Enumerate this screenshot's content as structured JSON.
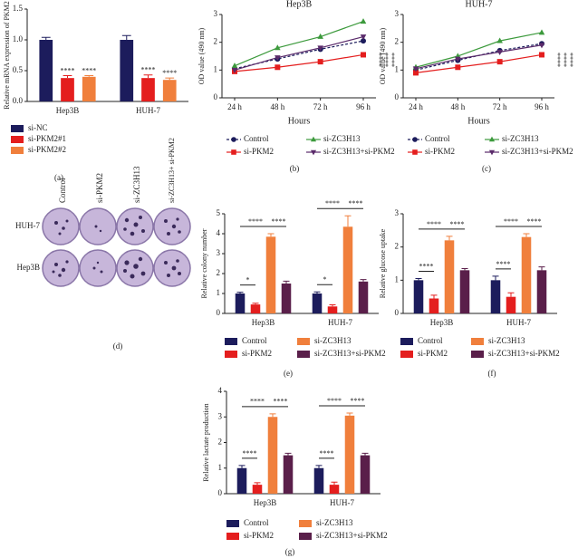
{
  "chart_data": [
    {
      "type": "bar",
      "caption": "(a)",
      "y_label": "Relative mRNA expression of PKM2",
      "categories": [
        "Hep3B",
        "HUH-7"
      ],
      "series": [
        {
          "name": "si-NC",
          "color": "#1c1c5c",
          "values": [
            1.0,
            1.0
          ],
          "errors": [
            0.04,
            0.07
          ]
        },
        {
          "name": "si-PKM2#1",
          "color": "#e41e1e",
          "values": [
            0.38,
            0.38
          ],
          "errors": [
            0.04,
            0.05
          ],
          "annotation": "****"
        },
        {
          "name": "si-PKM2#2",
          "color": "#f07f3c",
          "values": [
            0.4,
            0.35
          ],
          "errors": [
            0.02,
            0.03
          ],
          "annotation": "****"
        }
      ],
      "ylim": [
        0,
        1.5
      ],
      "yticks": [
        {
          "value": 0,
          "label": "0.0"
        },
        {
          "value": 0.5,
          "label": "0.5"
        },
        {
          "value": 1,
          "label": "1.0"
        },
        {
          "value": 1.5,
          "label": "1.5"
        }
      ]
    },
    {
      "type": "line",
      "caption": "(b)",
      "title": "Hep3B",
      "x_label": "Hours",
      "y_label": "OD value (490 nm)",
      "categories": [
        "24 h",
        "48 h",
        "72 h",
        "96 h"
      ],
      "series": [
        {
          "name": "Control",
          "color": "#1c1c5c",
          "marker": "circle",
          "dashed": true,
          "values": [
            1.05,
            1.4,
            1.75,
            2.05
          ]
        },
        {
          "name": "si-PKM2",
          "color": "#e41e1e",
          "marker": "square",
          "values": [
            0.95,
            1.1,
            1.3,
            1.55
          ]
        },
        {
          "name": "si-ZC3H13",
          "color": "#3c9a3c",
          "marker": "triangle",
          "values": [
            1.15,
            1.8,
            2.2,
            2.75
          ]
        },
        {
          "name": "si-ZC3H13+si-PKM2",
          "color": "#5a2a6a",
          "marker": "triangle-down",
          "values": [
            1.0,
            1.45,
            1.8,
            2.2
          ]
        }
      ],
      "annotations": [
        "****",
        "****",
        "****"
      ],
      "ylim": [
        0,
        3
      ],
      "yticks": [
        0,
        1,
        2,
        3
      ]
    },
    {
      "type": "line",
      "caption": "(c)",
      "title": "HUH-7",
      "x_label": "Hours",
      "y_label": "OD value (490 nm)",
      "categories": [
        "24 h",
        "48 h",
        "72 h",
        "96 h"
      ],
      "series": [
        {
          "name": "Control",
          "color": "#1c1c5c",
          "marker": "circle",
          "dashed": true,
          "values": [
            1.0,
            1.35,
            1.7,
            1.95
          ]
        },
        {
          "name": "si-PKM2",
          "color": "#e41e1e",
          "marker": "square",
          "values": [
            0.9,
            1.1,
            1.3,
            1.55
          ]
        },
        {
          "name": "si-ZC3H13",
          "color": "#3c9a3c",
          "marker": "triangle",
          "values": [
            1.1,
            1.5,
            2.05,
            2.35
          ]
        },
        {
          "name": "si-ZC3H13+si-PKM2",
          "color": "#5a2a6a",
          "marker": "triangle-down",
          "values": [
            1.05,
            1.4,
            1.65,
            1.9
          ]
        }
      ],
      "annotations": [
        "****",
        "****",
        "****"
      ],
      "ylim": [
        0,
        3
      ],
      "yticks": [
        0,
        1,
        2,
        3
      ]
    },
    {
      "type": "bar",
      "caption": "(e)",
      "y_label": "Relative colony number",
      "categories": [
        "Hep3B",
        "HUH-7"
      ],
      "series": [
        {
          "name": "Control",
          "color": "#1c1c5c",
          "values": [
            1.0,
            1.0
          ],
          "errors": [
            0.06,
            0.08
          ]
        },
        {
          "name": "si-PKM2",
          "color": "#e41e1e",
          "values": [
            0.45,
            0.35
          ],
          "errors": [
            0.06,
            0.08
          ]
        },
        {
          "name": "si-ZC3H13",
          "color": "#f07f3c",
          "values": [
            3.85,
            4.35
          ],
          "errors": [
            0.15,
            0.55
          ]
        },
        {
          "name": "si-ZC3H13+si-PKM2",
          "color": "#5a1f4a",
          "values": [
            1.5,
            1.6
          ],
          "errors": [
            0.12,
            0.1
          ]
        }
      ],
      "annotations": [
        [
          "****",
          "*",
          "****"
        ],
        [
          "****",
          "*",
          "****"
        ]
      ],
      "ylim": [
        0,
        5
      ],
      "yticks": [
        0,
        1,
        2,
        3,
        4,
        5
      ]
    },
    {
      "type": "bar",
      "caption": "(f)",
      "y_label": "Relative glucose uptake",
      "categories": [
        "Hep3B",
        "HUH-7"
      ],
      "series": [
        {
          "name": "Control",
          "color": "#1c1c5c",
          "values": [
            1.0,
            1.0
          ],
          "errors": [
            0.05,
            0.12
          ]
        },
        {
          "name": "si-PKM2",
          "color": "#e41e1e",
          "values": [
            0.45,
            0.5
          ],
          "errors": [
            0.1,
            0.12
          ]
        },
        {
          "name": "si-ZC3H13",
          "color": "#f07f3c",
          "values": [
            2.2,
            2.3
          ],
          "errors": [
            0.12,
            0.1
          ]
        },
        {
          "name": "si-ZC3H13+si-PKM2",
          "color": "#5a1f4a",
          "values": [
            1.3,
            1.3
          ],
          "errors": [
            0.05,
            0.1
          ]
        }
      ],
      "annotations": [
        [
          "****",
          "****",
          "****"
        ],
        [
          "****",
          "****",
          "****"
        ]
      ],
      "ylim": [
        0,
        3
      ],
      "yticks": [
        0,
        1,
        2,
        3
      ]
    },
    {
      "type": "bar",
      "caption": "(g)",
      "y_label": "Relative lactate production",
      "categories": [
        "Hep3B",
        "HUH-7"
      ],
      "series": [
        {
          "name": "Control",
          "color": "#1c1c5c",
          "values": [
            1.0,
            1.0
          ],
          "errors": [
            0.1,
            0.1
          ]
        },
        {
          "name": "si-PKM2",
          "color": "#e41e1e",
          "values": [
            0.35,
            0.35
          ],
          "errors": [
            0.08,
            0.1
          ]
        },
        {
          "name": "si-ZC3H13",
          "color": "#f07f3c",
          "values": [
            3.0,
            3.05
          ],
          "errors": [
            0.12,
            0.1
          ]
        },
        {
          "name": "si-ZC3H13+si-PKM2",
          "color": "#5a1f4a",
          "values": [
            1.5,
            1.5
          ],
          "errors": [
            0.08,
            0.08
          ]
        }
      ],
      "annotations": [
        [
          "****",
          "****",
          "****"
        ],
        [
          "****",
          "****",
          "****"
        ]
      ],
      "ylim": [
        0,
        4
      ],
      "yticks": [
        0,
        1,
        2,
        3,
        4
      ]
    }
  ],
  "colony_panel": {
    "caption": "(d)",
    "column_labels": [
      "Control",
      "si-PKM2",
      "si-ZC3H13",
      "si-ZC3H13+ si-PKM2"
    ],
    "row_labels": [
      "HUH-7",
      "Hep3B"
    ]
  }
}
